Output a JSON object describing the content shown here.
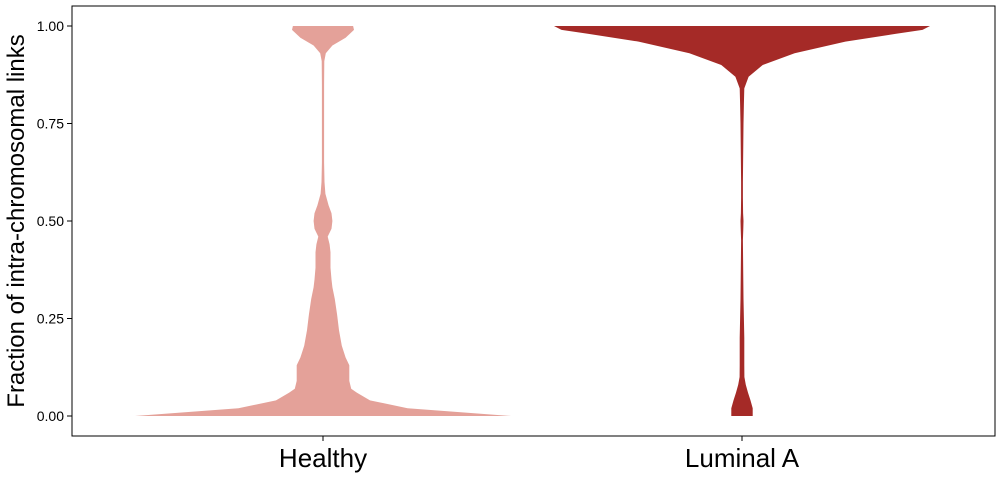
{
  "chart_data": {
    "type": "violin",
    "ylabel": "Fraction of intra-chromosomal links",
    "ylim": [
      0,
      1
    ],
    "yticks": [
      "0.00",
      "0.25",
      "0.50",
      "0.75",
      "1.00"
    ],
    "categories": [
      "Healthy",
      "Luminal A"
    ],
    "series": [
      {
        "category": "Healthy",
        "color": "#e4a199",
        "density": [
          [
            0.0,
            1.0
          ],
          [
            0.02,
            0.45
          ],
          [
            0.04,
            0.25
          ],
          [
            0.06,
            0.18
          ],
          [
            0.07,
            0.15
          ],
          [
            0.09,
            0.14
          ],
          [
            0.11,
            0.14
          ],
          [
            0.13,
            0.14
          ],
          [
            0.15,
            0.12
          ],
          [
            0.18,
            0.1
          ],
          [
            0.22,
            0.085
          ],
          [
            0.26,
            0.075
          ],
          [
            0.3,
            0.063
          ],
          [
            0.33,
            0.05
          ],
          [
            0.35,
            0.045
          ],
          [
            0.38,
            0.04
          ],
          [
            0.42,
            0.04
          ],
          [
            0.44,
            0.035
          ],
          [
            0.46,
            0.025
          ],
          [
            0.48,
            0.045
          ],
          [
            0.5,
            0.05
          ],
          [
            0.52,
            0.045
          ],
          [
            0.54,
            0.03
          ],
          [
            0.57,
            0.013
          ],
          [
            0.6,
            0.008
          ],
          [
            0.65,
            0.006
          ],
          [
            0.75,
            0.006
          ],
          [
            0.85,
            0.006
          ],
          [
            0.91,
            0.007
          ],
          [
            0.93,
            0.015
          ],
          [
            0.95,
            0.05
          ],
          [
            0.97,
            0.12
          ],
          [
            0.99,
            0.165
          ],
          [
            1.0,
            0.16
          ]
        ]
      },
      {
        "category": "Luminal A",
        "color": "#a52a27",
        "density": [
          [
            0.0,
            0.057
          ],
          [
            0.02,
            0.057
          ],
          [
            0.04,
            0.045
          ],
          [
            0.06,
            0.032
          ],
          [
            0.08,
            0.02
          ],
          [
            0.1,
            0.013
          ],
          [
            0.13,
            0.012
          ],
          [
            0.2,
            0.012
          ],
          [
            0.25,
            0.01
          ],
          [
            0.3,
            0.008
          ],
          [
            0.35,
            0.007
          ],
          [
            0.4,
            0.006
          ],
          [
            0.45,
            0.005
          ],
          [
            0.48,
            0.007
          ],
          [
            0.5,
            0.008
          ],
          [
            0.52,
            0.006
          ],
          [
            0.56,
            0.005
          ],
          [
            0.6,
            0.005
          ],
          [
            0.65,
            0.006
          ],
          [
            0.7,
            0.007
          ],
          [
            0.75,
            0.008
          ],
          [
            0.8,
            0.01
          ],
          [
            0.84,
            0.012
          ],
          [
            0.87,
            0.035
          ],
          [
            0.9,
            0.11
          ],
          [
            0.93,
            0.28
          ],
          [
            0.96,
            0.55
          ],
          [
            0.98,
            0.82
          ],
          [
            0.99,
            0.96
          ],
          [
            1.0,
            1.0
          ]
        ]
      }
    ]
  }
}
